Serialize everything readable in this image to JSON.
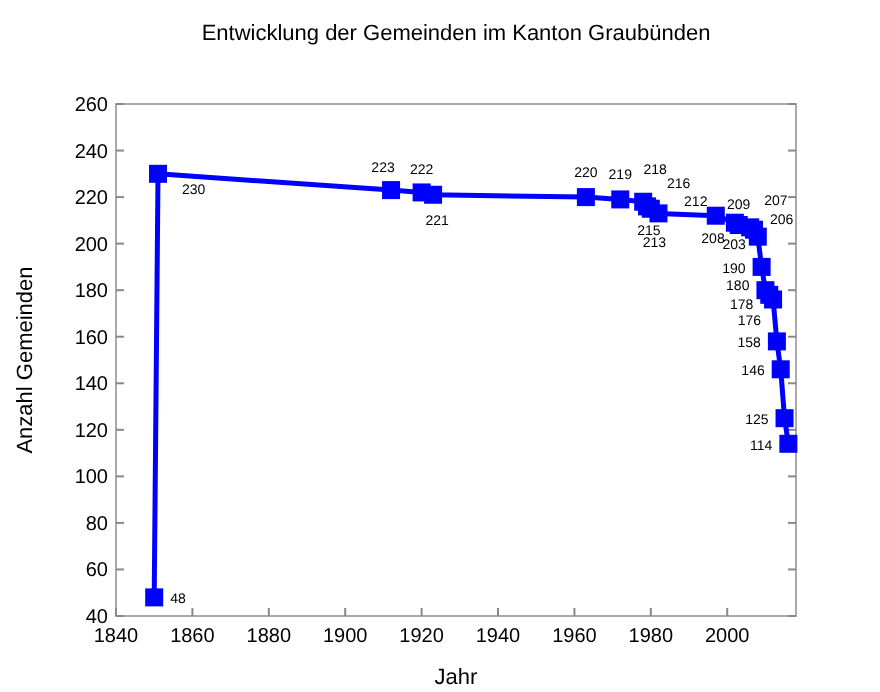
{
  "chart_data": {
    "type": "line",
    "title": "Entwicklung der Gemeinden im Kanton Graubünden",
    "xlabel": "Jahr",
    "ylabel": "Anzahl Gemeinden",
    "x": [
      1850,
      1851,
      1912,
      1920,
      1923,
      1963,
      1972,
      1978,
      1979,
      1980,
      1982,
      1997,
      2002,
      2003,
      2006,
      2007,
      2008,
      2009,
      2010,
      2011,
      2012,
      2013,
      2014,
      2015,
      2016
    ],
    "series": [
      {
        "color": "#0000ff",
        "values": [
          48,
          230,
          223,
          222,
          221,
          220,
          219,
          218,
          216,
          215,
          213,
          212,
          209,
          208,
          207,
          206,
          203,
          190,
          180,
          178,
          176,
          158,
          146,
          125,
          114
        ]
      }
    ],
    "xlim": [
      1840,
      2018
    ],
    "xticks": [
      1840,
      1860,
      1880,
      1900,
      1920,
      1940,
      1960,
      1980,
      2000
    ],
    "ylim": [
      40,
      260
    ],
    "yticks": [
      40,
      60,
      80,
      100,
      120,
      140,
      160,
      180,
      200,
      220,
      240,
      260
    ],
    "marker": "square",
    "line_style": "solid",
    "data_labels": true,
    "grid": false
  }
}
